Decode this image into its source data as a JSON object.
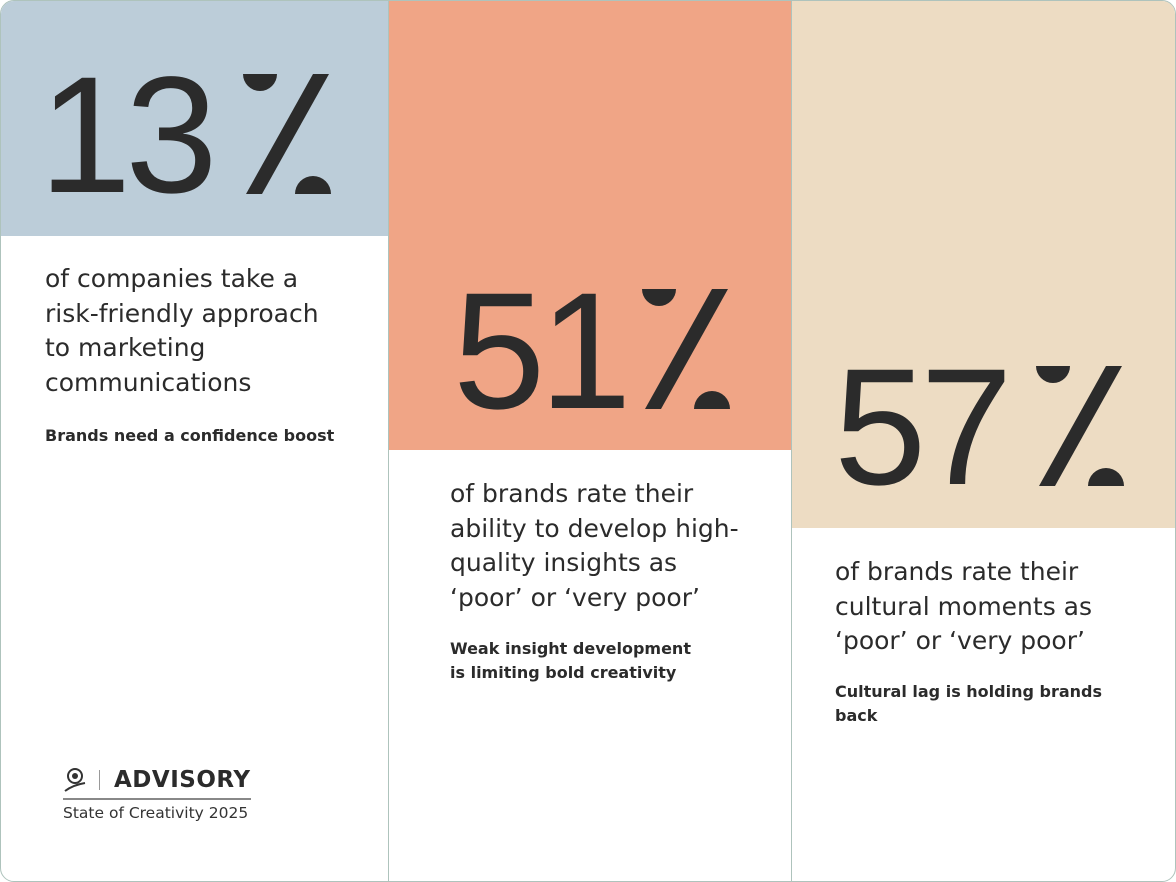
{
  "colors": {
    "stat1": "#bccdd9",
    "stat2": "#f0a586",
    "stat3": "#eddcc3",
    "text": "#2b2b2b",
    "border": "#aec3bc"
  },
  "stats": [
    {
      "value": "13",
      "unit": "%",
      "description": [
        "of companies take a",
        "risk-friendly approach",
        "to marketing",
        "communications"
      ],
      "subtitle": [
        "Brands need a confidence boost"
      ]
    },
    {
      "value": "51",
      "unit": "%",
      "description": [
        "of brands rate their",
        "ability to develop high-",
        "quality insights as",
        "‘poor’ or ‘very poor’"
      ],
      "subtitle": [
        "Weak insight development",
        "is limiting bold creativity"
      ]
    },
    {
      "value": "57",
      "unit": "%",
      "description": [
        "of brands rate their",
        "cultural moments as",
        "‘poor’ or ‘very poor’"
      ],
      "subtitle": [
        "Cultural lag is holding brands",
        "back"
      ]
    }
  ],
  "brand": {
    "logo_icon": "lion-icon",
    "name": "ADVISORY",
    "tagline": "State of Creativity 2025"
  }
}
